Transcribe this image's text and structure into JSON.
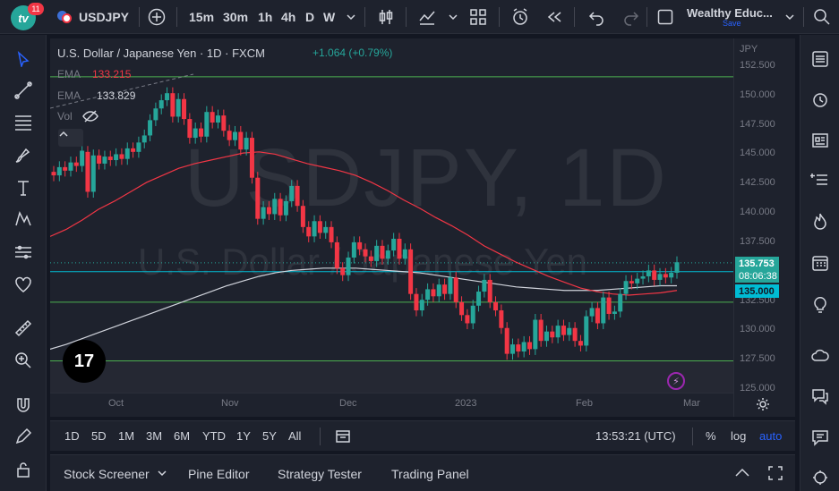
{
  "topbar": {
    "logo_text": "tv",
    "notifications": "11",
    "symbol": "USDJPY",
    "timeframes": [
      "15m",
      "30m",
      "1h",
      "4h",
      "D",
      "W"
    ],
    "active_timeframe": "D",
    "layout_name": "Wealthy Educ...",
    "save_label": "Save"
  },
  "legend": {
    "title": "U.S. Dollar / Japanese Yen · 1D · FXCM",
    "change": "+1.064 (+0.79%)",
    "ema1_label": "EMA",
    "ema1_value": "133.215",
    "ema2_label": "EMA",
    "ema2_value": "133.829",
    "vol_label": "Vol"
  },
  "watermark": {
    "big": "USDJPY, 1D",
    "small": "U.S. Dollar / Japanese Yen"
  },
  "price_axis": {
    "currency": "JPY",
    "labels": [
      "152.500",
      "150.000",
      "147.500",
      "145.000",
      "142.500",
      "140.000",
      "137.500",
      "135.000",
      "132.500",
      "130.000",
      "127.500",
      "125.000"
    ],
    "last_price": "135.753",
    "countdown": "08:06:38",
    "level_tag": "135.000"
  },
  "time_axis": {
    "labels": [
      "Oct",
      "Nov",
      "Dec",
      "2023",
      "Feb",
      "Mar"
    ]
  },
  "colors": {
    "up": "#26a69a",
    "down": "#f23645",
    "ema_short": "#f23645",
    "ema_long": "#d1d4dc",
    "bg": "#1e222d",
    "accent": "#2962ff"
  },
  "ranges": {
    "items": [
      "1D",
      "5D",
      "1M",
      "3M",
      "6M",
      "YTD",
      "1Y",
      "5Y",
      "All"
    ],
    "clock": "13:53:21 (UTC)",
    "percent": "%",
    "log": "log",
    "auto": "auto"
  },
  "bottom_panel": {
    "items": [
      "Stock Screener",
      "Pine Editor",
      "Strategy Tester",
      "Trading Panel"
    ]
  },
  "chart_data": {
    "type": "candlestick",
    "symbol": "USDJPY",
    "interval": "1D",
    "ylim": [
      125.0,
      153.0
    ],
    "horizontal_levels": [
      151.6,
      135.0,
      132.4,
      127.4
    ],
    "candles": [
      [
        143.5,
        143.2
      ],
      [
        143.2,
        143.9
      ],
      [
        143.9,
        143.6
      ],
      [
        143.6,
        144.3
      ],
      [
        144.3,
        144.0
      ],
      [
        144.0,
        145.3
      ],
      [
        145.2,
        141.8
      ],
      [
        141.8,
        144.9
      ],
      [
        144.9,
        144.2
      ],
      [
        144.2,
        144.8
      ],
      [
        144.8,
        144.5
      ],
      [
        144.5,
        145.0
      ],
      [
        145.0,
        144.6
      ],
      [
        144.6,
        145.5
      ],
      [
        145.5,
        145.2
      ],
      [
        145.2,
        146.0
      ],
      [
        146.0,
        146.6
      ],
      [
        146.6,
        147.9
      ],
      [
        147.9,
        148.9
      ],
      [
        148.9,
        149.6
      ],
      [
        149.6,
        150.2
      ],
      [
        150.2,
        148.2
      ],
      [
        148.2,
        149.7
      ],
      [
        149.7,
        148.0
      ],
      [
        148.0,
        146.4
      ],
      [
        146.4,
        147.2
      ],
      [
        147.2,
        146.5
      ],
      [
        146.5,
        148.6
      ],
      [
        148.6,
        147.7
      ],
      [
        147.7,
        148.3
      ],
      [
        148.3,
        147.0
      ],
      [
        147.0,
        146.2
      ],
      [
        146.2,
        146.9
      ],
      [
        146.9,
        145.4
      ],
      [
        145.4,
        146.4
      ],
      [
        146.4,
        143.0
      ],
      [
        143.0,
        139.5
      ],
      [
        139.5,
        140.5
      ],
      [
        140.5,
        139.9
      ],
      [
        139.9,
        141.2
      ],
      [
        141.2,
        139.8
      ],
      [
        139.8,
        141.0
      ],
      [
        141.0,
        142.3
      ],
      [
        142.3,
        140.6
      ],
      [
        140.6,
        138.8
      ],
      [
        138.8,
        138.0
      ],
      [
        138.0,
        139.3
      ],
      [
        139.3,
        138.3
      ],
      [
        138.3,
        138.8
      ],
      [
        138.8,
        137.5
      ],
      [
        137.5,
        135.3
      ],
      [
        135.3,
        134.7
      ],
      [
        134.7,
        136.2
      ],
      [
        136.2,
        137.5
      ],
      [
        137.5,
        136.9
      ],
      [
        136.9,
        136.3
      ],
      [
        136.3,
        135.9
      ],
      [
        135.9,
        137.2
      ],
      [
        137.2,
        136.1
      ],
      [
        136.1,
        136.8
      ],
      [
        136.8,
        137.8
      ],
      [
        137.8,
        136.1
      ],
      [
        136.1,
        136.9
      ],
      [
        136.9,
        133.1
      ],
      [
        133.1,
        131.7
      ],
      [
        131.7,
        132.6
      ],
      [
        132.6,
        133.5
      ],
      [
        133.5,
        132.9
      ],
      [
        132.9,
        133.9
      ],
      [
        133.9,
        133.1
      ],
      [
        133.1,
        134.5
      ],
      [
        134.5,
        132.4
      ],
      [
        132.4,
        131.3
      ],
      [
        131.3,
        130.6
      ],
      [
        130.6,
        132.1
      ],
      [
        132.1,
        133.3
      ],
      [
        133.3,
        134.3
      ],
      [
        134.3,
        132.4
      ],
      [
        132.4,
        131.7
      ],
      [
        131.7,
        130.2
      ],
      [
        130.2,
        128.0
      ],
      [
        128.0,
        128.8
      ],
      [
        128.8,
        128.2
      ],
      [
        128.2,
        129.0
      ],
      [
        129.0,
        128.4
      ],
      [
        128.4,
        130.9
      ],
      [
        130.9,
        129.1
      ],
      [
        129.1,
        129.9
      ],
      [
        129.9,
        129.4
      ],
      [
        129.4,
        130.4
      ],
      [
        130.4,
        129.6
      ],
      [
        129.6,
        130.2
      ],
      [
        130.2,
        129.1
      ],
      [
        129.1,
        128.7
      ],
      [
        128.7,
        131.2
      ],
      [
        131.2,
        131.9
      ],
      [
        131.9,
        130.6
      ],
      [
        130.6,
        132.8
      ],
      [
        132.8,
        131.4
      ],
      [
        131.4,
        131.6
      ],
      [
        131.6,
        133.1
      ],
      [
        133.1,
        134.2
      ],
      [
        134.2,
        134.0
      ],
      [
        134.0,
        134.4
      ],
      [
        134.4,
        134.6
      ],
      [
        134.6,
        135.1
      ],
      [
        135.1,
        134.3
      ],
      [
        134.3,
        134.8
      ],
      [
        134.8,
        134.5
      ],
      [
        134.5,
        134.9
      ],
      [
        134.9,
        135.8
      ]
    ],
    "ema_short_values": [
      138.0,
      138.6,
      139.4,
      140.3,
      141.0,
      141.8,
      142.6,
      143.2,
      143.8,
      144.2,
      144.5,
      144.8,
      145.1,
      145.2,
      145.0,
      144.6,
      144.2,
      143.9,
      143.6,
      143.2,
      142.6,
      141.9,
      141.1,
      140.4,
      139.6,
      138.9,
      138.1,
      137.2,
      136.5,
      135.8,
      135.2,
      134.6,
      134.1,
      133.6,
      133.3,
      133.1,
      133.0,
      133.1,
      133.2,
      133.4
    ],
    "ema_long_values": [
      128.4,
      128.8,
      129.3,
      129.8,
      130.3,
      130.8,
      131.3,
      131.8,
      132.3,
      132.8,
      133.3,
      133.8,
      134.2,
      134.6,
      134.9,
      135.1,
      135.2,
      135.3,
      135.3,
      135.3,
      135.2,
      135.1,
      135.0,
      134.9,
      134.7,
      134.5,
      134.3,
      134.1,
      133.9,
      133.7,
      133.6,
      133.5,
      133.4,
      133.4,
      133.4,
      133.5,
      133.6,
      133.7,
      133.8,
      133.8
    ]
  }
}
